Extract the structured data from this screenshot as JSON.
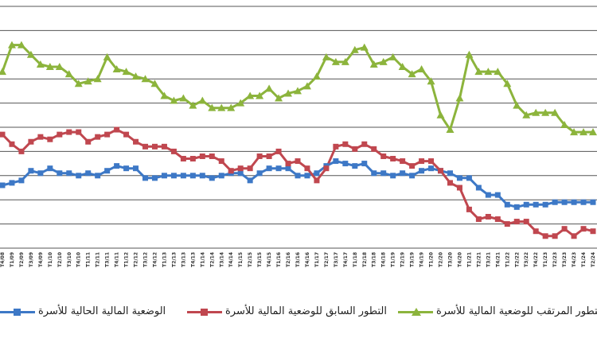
{
  "chart_data": {
    "type": "line",
    "x": [
      "T4/08",
      "T1/09",
      "T2/09",
      "T3/09",
      "T4/09",
      "T1/10",
      "T2/10",
      "T3/10",
      "T4/10",
      "T1/11",
      "T2/11",
      "T3/11",
      "T4/11",
      "T1/12",
      "T2/12",
      "T3/12",
      "T4/12",
      "T1/13",
      "T2/13",
      "T3/13",
      "T4/13",
      "T1/14",
      "T2/14",
      "T3/14",
      "T4/14",
      "T1/15",
      "T2/15",
      "T3/15",
      "T4/15",
      "T1/16",
      "T2/16",
      "T3/16",
      "T4/16",
      "T1/17",
      "T2/17",
      "T3/17",
      "T4/17",
      "T1/18",
      "T2/18",
      "T3/18",
      "T4/18",
      "T1/19",
      "T2/19",
      "T3/19",
      "T4/19",
      "T1/20",
      "T2/20",
      "T3/20",
      "T4/20",
      "T1/21",
      "T2/21",
      "T3/21",
      "T4/21",
      "T1/22",
      "T2/22",
      "T3/22",
      "T4/22",
      "T1/23",
      "T2/23",
      "T3/23",
      "T4/23",
      "T1/24",
      "T2/24"
    ],
    "ylim": [
      0,
      10
    ],
    "grid": true,
    "legend_position": "bottom",
    "series": [
      {
        "name": "الوضعية المالية الحالية للأسرة",
        "color": "#3d78c6",
        "marker": "square",
        "values": [
          2.6,
          2.7,
          2.8,
          3.2,
          3.1,
          3.3,
          3.1,
          3.1,
          3.0,
          3.1,
          3.0,
          3.2,
          3.4,
          3.3,
          3.3,
          2.9,
          2.9,
          3.0,
          3.0,
          3.0,
          3.0,
          3.0,
          2.9,
          3.0,
          3.1,
          3.1,
          2.8,
          3.1,
          3.3,
          3.3,
          3.3,
          3.0,
          3.0,
          3.1,
          3.4,
          3.6,
          3.5,
          3.4,
          3.5,
          3.1,
          3.1,
          3.0,
          3.1,
          3.0,
          3.2,
          3.3,
          3.2,
          3.1,
          2.9,
          2.9,
          2.5,
          2.2,
          2.2,
          1.8,
          1.7,
          1.8,
          1.8,
          1.8,
          1.9,
          1.9,
          1.9,
          1.9,
          1.9
        ]
      },
      {
        "name": "التطور السابق للوضعية المالية للأسرة",
        "color": "#c0474f",
        "marker": "square",
        "values": [
          4.7,
          4.3,
          4.0,
          4.4,
          4.6,
          4.5,
          4.7,
          4.8,
          4.8,
          4.4,
          4.6,
          4.7,
          4.9,
          4.7,
          4.4,
          4.2,
          4.2,
          4.2,
          4.0,
          3.7,
          3.7,
          3.8,
          3.8,
          3.6,
          3.2,
          3.3,
          3.3,
          3.8,
          3.8,
          4.0,
          3.5,
          3.6,
          3.3,
          2.8,
          3.3,
          4.2,
          4.3,
          4.1,
          4.3,
          4.1,
          3.8,
          3.7,
          3.6,
          3.4,
          3.6,
          3.6,
          3.2,
          2.7,
          2.5,
          1.6,
          1.2,
          1.3,
          1.2,
          1.0,
          1.1,
          1.1,
          0.7,
          0.5,
          0.5,
          0.8,
          0.5,
          0.8,
          0.7
        ]
      },
      {
        "name": "التطور المرتقب للوضعية المالية للأسرة",
        "color": "#8cb43c",
        "marker": "triangle",
        "values": [
          7.3,
          8.4,
          8.4,
          8.0,
          7.6,
          7.5,
          7.5,
          7.2,
          6.8,
          6.9,
          7.0,
          7.9,
          7.4,
          7.3,
          7.1,
          7.0,
          6.8,
          6.3,
          6.1,
          6.2,
          5.9,
          6.1,
          5.8,
          5.8,
          5.8,
          6.0,
          6.3,
          6.3,
          6.6,
          6.2,
          6.4,
          6.5,
          6.7,
          7.1,
          7.9,
          7.7,
          7.7,
          8.2,
          8.3,
          7.6,
          7.7,
          7.9,
          7.5,
          7.2,
          7.4,
          6.9,
          5.5,
          4.9,
          6.2,
          8.0,
          7.3,
          7.3,
          7.3,
          6.8,
          5.9,
          5.5,
          5.6,
          5.6,
          5.6,
          5.1,
          4.8,
          4.8,
          4.8
        ]
      }
    ]
  }
}
